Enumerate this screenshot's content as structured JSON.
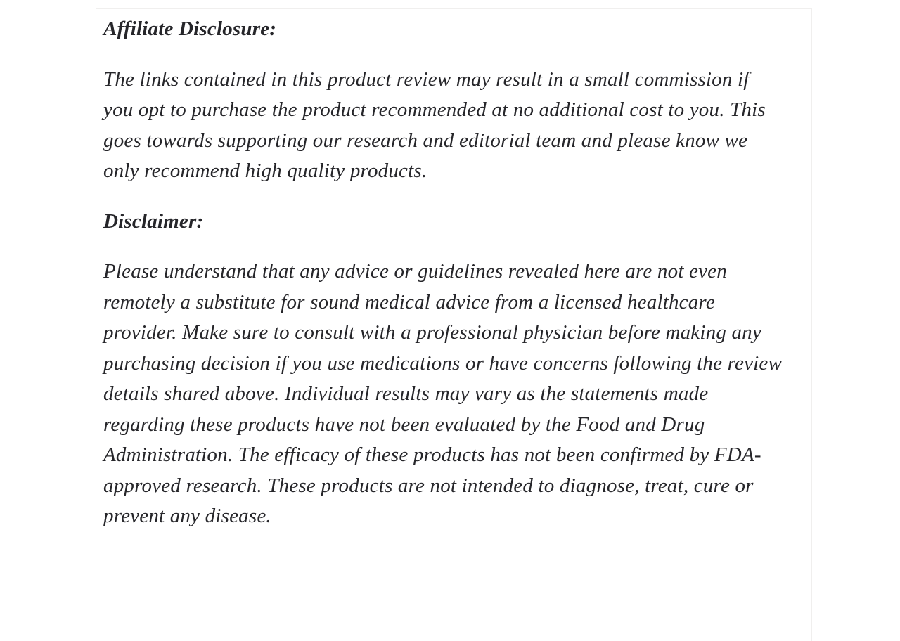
{
  "page": {
    "background_color": "#ffffff",
    "card_background_color": "#ffffff",
    "card_border_color": "#f0efee",
    "text_color": "#26262a"
  },
  "article": {
    "sections": [
      {
        "heading": "Affiliate Disclosure:",
        "lines": [
          "The links contained in this product review may result in a small commission if",
          "you opt to purchase the product recommended at no additional cost to you. This",
          "goes towards supporting our research and editorial team and please know we",
          "only recommend high quality products."
        ]
      },
      {
        "heading": "Disclaimer:",
        "lines": [
          "Please understand that any advice or guidelines revealed here are not even",
          "remotely a substitute for sound medical advice from a licensed healthcare",
          "provider. Make sure to consult with a professional physician before making any",
          "purchasing decision if you use medications or have concerns following the review",
          "details shared above. Individual results may vary as the statements made",
          "regarding these products have not been evaluated by the Food and Drug",
          "Administration. The efficacy of these products has not been confirmed by FDA-",
          "approved research. These products are not intended to diagnose, treat, cure or",
          "prevent any disease."
        ]
      }
    ]
  }
}
